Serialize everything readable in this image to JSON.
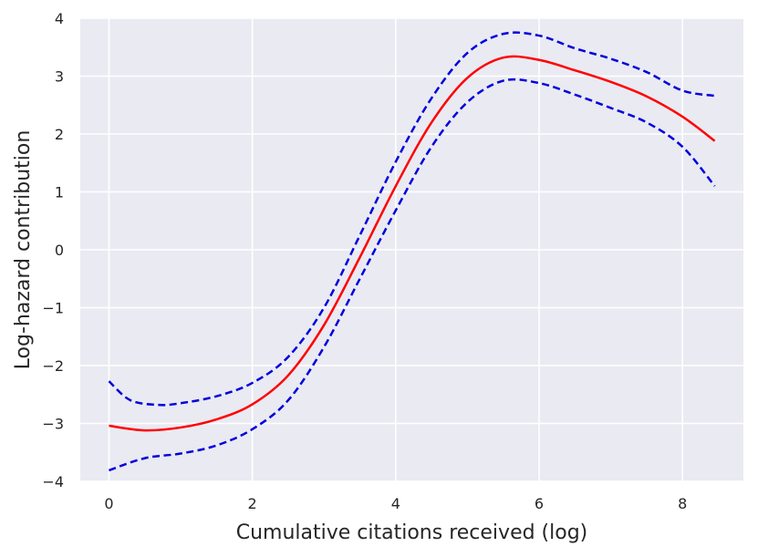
{
  "chart_data": {
    "type": "line",
    "title": "",
    "xlabel": "Cumulative citations received (log)",
    "ylabel": "Log-hazard contribution",
    "xlim": [
      -0.4,
      8.85
    ],
    "ylim": [
      -4,
      4
    ],
    "xticks": [
      0,
      2,
      4,
      6,
      8
    ],
    "yticks": [
      -4,
      -3,
      -2,
      -1,
      0,
      1,
      2,
      3,
      4
    ],
    "ytick_labels": [
      "−4",
      "−3",
      "−2",
      "−1",
      "0",
      "1",
      "2",
      "3",
      "4"
    ],
    "grid": true,
    "colors": {
      "background": "#eaeaf2",
      "grid": "#ffffff",
      "estimate": "#ff0000",
      "bounds": "#0000dd"
    },
    "series": [
      {
        "style": "solid",
        "color": "#ff0000",
        "x": [
          0,
          0.5,
          1,
          1.5,
          2,
          2.5,
          3,
          3.5,
          4,
          4.5,
          5,
          5.5,
          6,
          6.5,
          7,
          7.5,
          8,
          8.45
        ],
        "y": [
          -3.04,
          -3.12,
          -3.07,
          -2.93,
          -2.67,
          -2.17,
          -1.3,
          -0.13,
          1.1,
          2.2,
          2.97,
          3.32,
          3.28,
          3.1,
          2.9,
          2.65,
          2.3,
          1.88
        ]
      },
      {
        "style": "dashed",
        "color": "#0000dd",
        "x": [
          0,
          0.3,
          0.7,
          1,
          1.5,
          2,
          2.5,
          3,
          3.5,
          4,
          4.5,
          5,
          5.5,
          6,
          6.5,
          7,
          7.5,
          8,
          8.45
        ],
        "y": [
          -2.27,
          -2.6,
          -2.68,
          -2.65,
          -2.53,
          -2.3,
          -1.85,
          -1.0,
          0.25,
          1.52,
          2.62,
          3.4,
          3.73,
          3.7,
          3.48,
          3.3,
          3.07,
          2.75,
          2.66
        ]
      },
      {
        "style": "dashed",
        "color": "#0000dd",
        "x": [
          0,
          0.5,
          1,
          1.5,
          2,
          2.5,
          3,
          3.5,
          4,
          4.5,
          5,
          5.5,
          6,
          6.5,
          7,
          7.5,
          8,
          8.45
        ],
        "y": [
          -3.81,
          -3.6,
          -3.52,
          -3.38,
          -3.1,
          -2.6,
          -1.68,
          -0.5,
          0.68,
          1.78,
          2.55,
          2.92,
          2.88,
          2.68,
          2.45,
          2.2,
          1.78,
          1.1
        ]
      }
    ]
  }
}
